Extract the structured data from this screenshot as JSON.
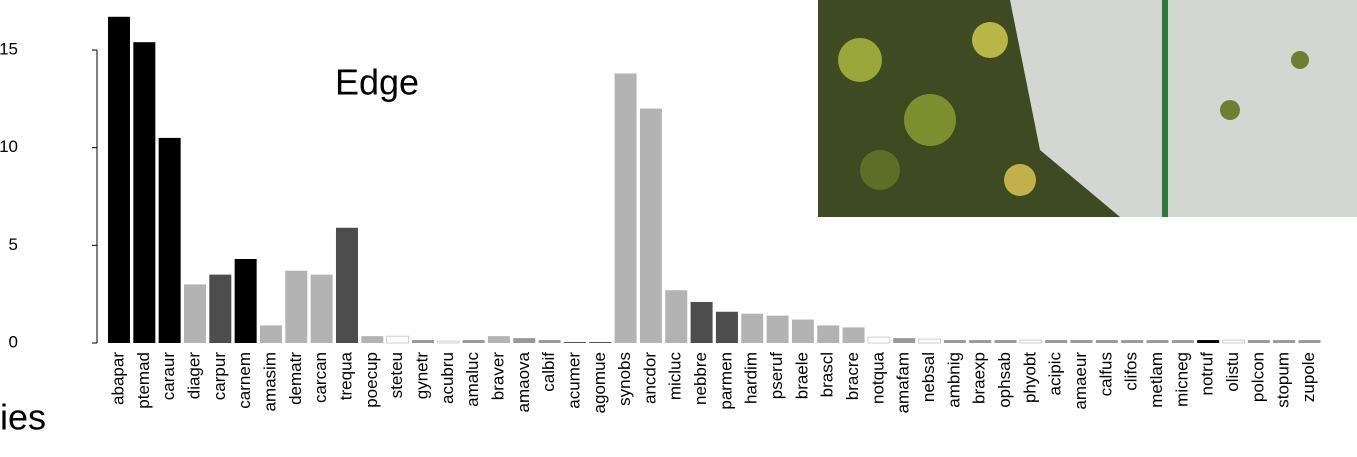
{
  "chart_data": {
    "type": "bar",
    "annotation": "Edge",
    "axis_label": "ies",
    "categories": [
      "abapar",
      "ptemad",
      "caraur",
      "diager",
      "carpur",
      "carnem",
      "amasim",
      "dematr",
      "carcan",
      "trequa",
      "poecup",
      "steteu",
      "gynetr",
      "acubru",
      "amaluc",
      "braver",
      "amaova",
      "calbif",
      "acumer",
      "agomue",
      "synobs",
      "ancdor",
      "micluc",
      "nebbre",
      "parmen",
      "hardim",
      "pseruf",
      "braele",
      "brascl",
      "bracre",
      "notqua",
      "amafam",
      "nebsal",
      "ambnig",
      "braexp",
      "ophsab",
      "phyobt",
      "acipic",
      "amaeur",
      "calfus",
      "clifos",
      "metlam",
      "micneg",
      "notruf",
      "olistu",
      "polcon",
      "stopum",
      "zupole"
    ],
    "values": [
      16.7,
      15.4,
      10.5,
      3.0,
      3.5,
      4.3,
      0.9,
      3.7,
      3.5,
      5.9,
      0.35,
      0.35,
      0.15,
      0.1,
      0.15,
      0.35,
      0.25,
      0.15,
      0.05,
      0.05,
      13.8,
      12.0,
      2.7,
      2.1,
      1.6,
      1.5,
      1.4,
      1.2,
      0.9,
      0.8,
      0.3,
      0.25,
      0.2,
      0.15,
      0.15,
      0.15,
      0.15,
      0.15,
      0.15,
      0.15,
      0.15,
      0.15,
      0.15,
      0.15,
      0.15,
      0.15,
      0.15,
      0.15
    ],
    "colors": [
      "#000000",
      "#000000",
      "#000000",
      "#b3b3b3",
      "#4d4d4d",
      "#000000",
      "#b3b3b3",
      "#b3b3b3",
      "#b3b3b3",
      "#4d4d4d",
      "#b3b3b3",
      "#ffffff",
      "#999999",
      "#ffffff",
      "#999999",
      "#b3b3b3",
      "#999999",
      "#999999",
      "#4d4d4d",
      "#4d4d4d",
      "#b3b3b3",
      "#b3b3b3",
      "#b3b3b3",
      "#4d4d4d",
      "#4d4d4d",
      "#b3b3b3",
      "#b3b3b3",
      "#b3b3b3",
      "#b3b3b3",
      "#b3b3b3",
      "#ffffff",
      "#999999",
      "#ffffff",
      "#999999",
      "#999999",
      "#999999",
      "#ffffff",
      "#999999",
      "#999999",
      "#999999",
      "#999999",
      "#999999",
      "#999999",
      "#000000",
      "#ffffff",
      "#999999",
      "#999999",
      "#999999"
    ],
    "ylim": [
      0,
      15
    ],
    "yticks": [
      0,
      5,
      10,
      15
    ]
  }
}
